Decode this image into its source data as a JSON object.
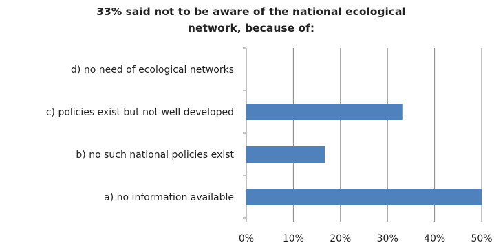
{
  "chart_data": {
    "type": "bar",
    "orientation": "horizontal",
    "title": "33% said not to be aware of the national ecological network, because of:",
    "title_lines": [
      "33% said not to be aware of the national ecological",
      "network, because of:"
    ],
    "categories": [
      "d) no need of ecological networks",
      "c) policies exist but not well developed",
      "b) no such national policies exist",
      "a) no information available"
    ],
    "values": [
      0,
      33.3,
      16.7,
      50
    ],
    "xlim": [
      0,
      50
    ],
    "xticks": [
      0,
      10,
      20,
      30,
      40,
      50
    ],
    "xtick_labels": [
      "0%",
      "10%",
      "20%",
      "30%",
      "40%",
      "50%"
    ],
    "xlabel": "",
    "ylabel": "",
    "grid": "vertical",
    "legend": "none",
    "bar_color": "#4f81bd",
    "grid_color": "#868686"
  }
}
